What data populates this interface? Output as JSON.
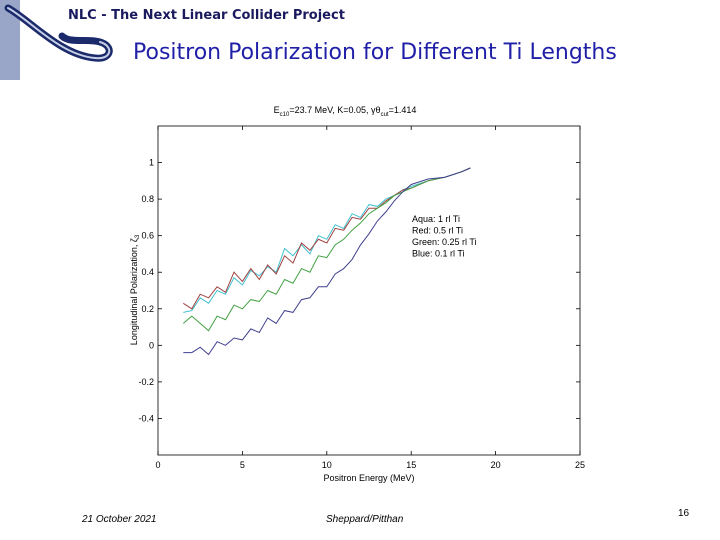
{
  "header": {
    "project": "NLC - The Next Linear Collider Project"
  },
  "slide": {
    "title": "Positron Polarization for Different Ti Lengths"
  },
  "footer": {
    "date": "21 October 2021",
    "authors": "Sheppard/Pitthan",
    "page": "16"
  },
  "chart_data": {
    "type": "line",
    "title": "E_c10=23.7 MeV, K=0.05, γθ_cut=1.414",
    "title_parts": {
      "e": "E",
      "e_sub": "c10",
      "mid": "=23.7 MeV, K=0.05, γθ",
      "theta_sub": "cut",
      "end": "=1.414"
    },
    "xlabel": "Positron Energy (MeV)",
    "ylabel": "Longitudinal Polarization, ζ3",
    "ylabel_parts": {
      "main": "Longitudinal Polarization, ζ",
      "sub": "3"
    },
    "xlim": [
      0,
      25
    ],
    "ylim": [
      -0.6,
      1.2
    ],
    "xticks": [
      0,
      5,
      10,
      15,
      20,
      25
    ],
    "yticks": [
      -0.4,
      -0.2,
      0,
      0.2,
      0.4,
      0.6,
      0.8,
      1
    ],
    "xtick_labels": [
      "0",
      "5",
      "10",
      "15",
      "20",
      "25"
    ],
    "ytick_labels": [
      "-0.4",
      "-0.2",
      "0",
      "0.2",
      "0.4",
      "0.6",
      "0.8",
      "1"
    ],
    "grid": false,
    "legend": "right",
    "series": [
      {
        "name": "Aqua: 1 rl Ti",
        "color": "#40c0d0",
        "x": [
          1.5,
          2,
          2.5,
          3,
          3.5,
          4,
          4.5,
          5,
          5.5,
          6,
          6.5,
          7,
          7.5,
          8,
          8.5,
          9,
          9.5,
          10,
          10.5,
          11,
          11.5,
          12,
          12.5,
          13,
          13.5,
          14,
          14.5,
          15,
          16,
          17,
          18,
          18.5
        ],
        "y": [
          0.18,
          0.19,
          0.26,
          0.23,
          0.3,
          0.28,
          0.37,
          0.33,
          0.41,
          0.38,
          0.43,
          0.4,
          0.53,
          0.49,
          0.55,
          0.5,
          0.6,
          0.58,
          0.66,
          0.64,
          0.72,
          0.7,
          0.77,
          0.76,
          0.8,
          0.82,
          0.85,
          0.87,
          0.9,
          0.92,
          0.95,
          0.97
        ]
      },
      {
        "name": "Red: 0.5 rl Ti",
        "color": "#a04040",
        "x": [
          1.5,
          2,
          2.5,
          3,
          3.5,
          4,
          4.5,
          5,
          5.5,
          6,
          6.5,
          7,
          7.5,
          8,
          8.5,
          9,
          9.5,
          10,
          10.5,
          11,
          11.5,
          12,
          12.5,
          13,
          13.5,
          14,
          14.5,
          15,
          16,
          17,
          18,
          18.5
        ],
        "y": [
          0.23,
          0.2,
          0.28,
          0.26,
          0.32,
          0.29,
          0.4,
          0.35,
          0.42,
          0.36,
          0.44,
          0.39,
          0.49,
          0.45,
          0.56,
          0.52,
          0.58,
          0.56,
          0.64,
          0.63,
          0.7,
          0.69,
          0.75,
          0.75,
          0.79,
          0.82,
          0.85,
          0.86,
          0.9,
          0.92,
          0.95,
          0.97
        ]
      },
      {
        "name": "Green: 0.25 rl Ti",
        "color": "#40a040",
        "x": [
          1.5,
          2,
          2.5,
          3,
          3.5,
          4,
          4.5,
          5,
          5.5,
          6,
          6.5,
          7,
          7.5,
          8,
          8.5,
          9,
          9.5,
          10,
          10.5,
          11,
          11.5,
          12,
          12.5,
          13,
          13.5,
          14,
          14.5,
          15,
          16,
          17,
          18,
          18.5
        ],
        "y": [
          0.12,
          0.16,
          0.12,
          0.08,
          0.16,
          0.14,
          0.22,
          0.2,
          0.25,
          0.24,
          0.3,
          0.28,
          0.36,
          0.34,
          0.42,
          0.4,
          0.49,
          0.48,
          0.55,
          0.58,
          0.63,
          0.67,
          0.72,
          0.75,
          0.78,
          0.82,
          0.84,
          0.86,
          0.9,
          0.92,
          0.95,
          0.97
        ]
      },
      {
        "name": "Blue: 0.1 rl Ti",
        "color": "#404090",
        "x": [
          1.5,
          2,
          2.5,
          3,
          3.5,
          4,
          4.5,
          5,
          5.5,
          6,
          6.5,
          7,
          7.5,
          8,
          8.5,
          9,
          9.5,
          10,
          10.5,
          11,
          11.5,
          12,
          12.5,
          13,
          13.5,
          14,
          14.5,
          15,
          16,
          17,
          18,
          18.5
        ],
        "y": [
          -0.04,
          -0.04,
          -0.01,
          -0.05,
          0.02,
          0.0,
          0.04,
          0.03,
          0.09,
          0.07,
          0.15,
          0.12,
          0.19,
          0.18,
          0.25,
          0.26,
          0.32,
          0.32,
          0.39,
          0.42,
          0.47,
          0.55,
          0.61,
          0.68,
          0.73,
          0.79,
          0.84,
          0.88,
          0.91,
          0.92,
          0.95,
          0.97
        ]
      }
    ]
  }
}
